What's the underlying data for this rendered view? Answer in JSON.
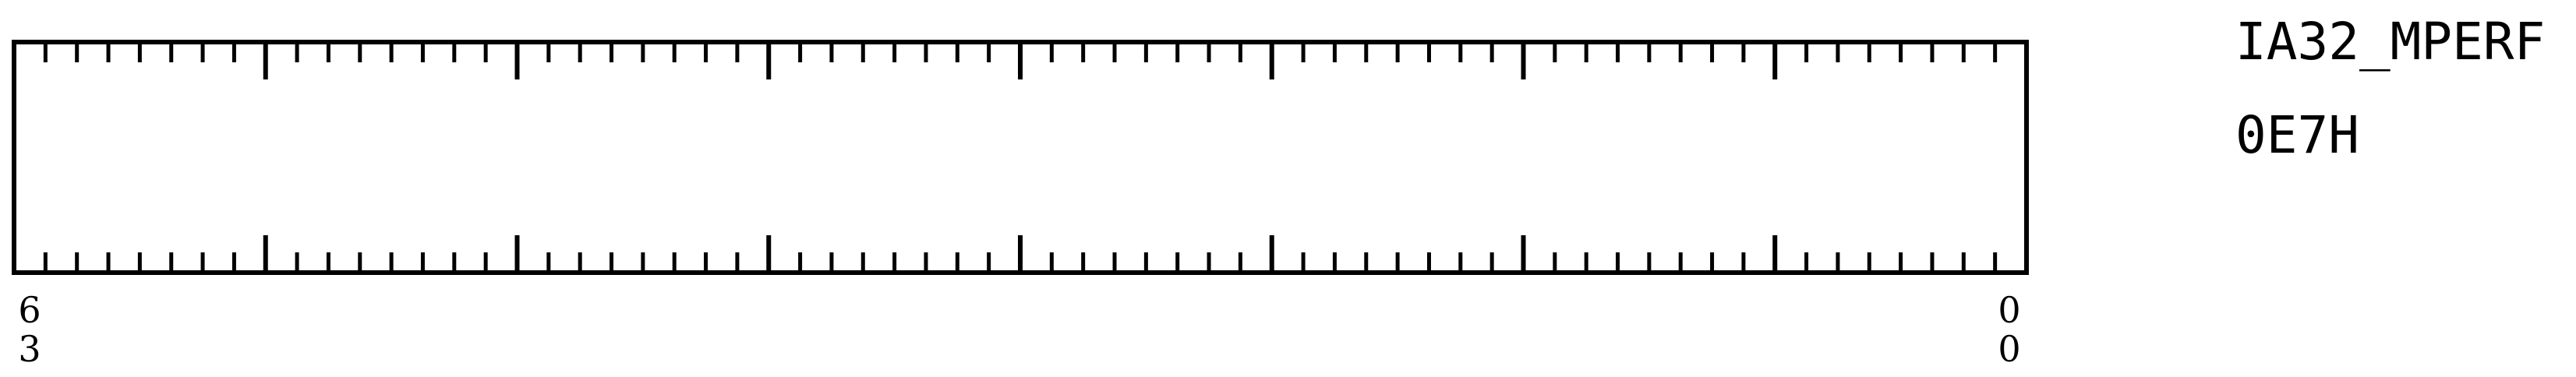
{
  "register": {
    "name": "IA32_MPERF",
    "address": "0E7H",
    "bit_count": 64,
    "msb_label": {
      "line1": "6",
      "line2": "3"
    },
    "lsb_label": {
      "line1": "0",
      "line2": "0"
    }
  },
  "colors": {
    "stroke": "#000000",
    "background": "#ffffff"
  }
}
